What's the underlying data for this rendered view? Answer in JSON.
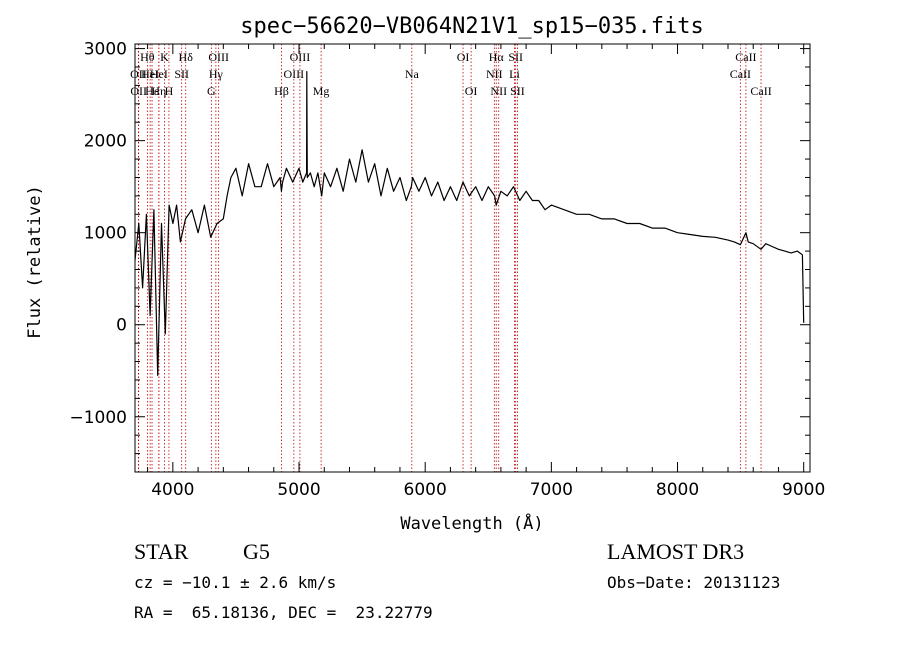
{
  "chart_data": {
    "type": "line",
    "title": "spec−56620−VB064N21V1_sp15−035.fits",
    "xlabel": "Wavelength (Å)",
    "ylabel": "Flux (relative)",
    "xlim": [
      3700,
      9050
    ],
    "ylim": [
      -1600,
      3050
    ],
    "xticks": [
      4000,
      5000,
      6000,
      7000,
      8000,
      9000
    ],
    "yticks": [
      -1000,
      0,
      1000,
      2000,
      3000
    ],
    "ytick_labels": [
      "−1000",
      "0",
      "1000",
      "2000",
      "3000"
    ],
    "series": [
      {
        "name": "spectrum",
        "x": [
          3700,
          3730,
          3760,
          3790,
          3820,
          3850,
          3880,
          3910,
          3940,
          3970,
          4000,
          4030,
          4060,
          4100,
          4150,
          4200,
          4250,
          4300,
          4350,
          4400,
          4430,
          4460,
          4500,
          4550,
          4600,
          4650,
          4700,
          4750,
          4800,
          4850,
          4860,
          4870,
          4900,
          4950,
          5000,
          5030,
          5060,
          5062,
          5064,
          5066,
          5090,
          5120,
          5150,
          5180,
          5200,
          5250,
          5300,
          5350,
          5400,
          5450,
          5500,
          5550,
          5600,
          5650,
          5700,
          5750,
          5800,
          5850,
          5890,
          5900,
          5950,
          6000,
          6050,
          6100,
          6150,
          6200,
          6250,
          6300,
          6350,
          6400,
          6450,
          6500,
          6550,
          6563,
          6600,
          6650,
          6700,
          6750,
          6800,
          6850,
          6900,
          6950,
          7000,
          7100,
          7200,
          7300,
          7400,
          7500,
          7600,
          7700,
          7800,
          7900,
          8000,
          8100,
          8200,
          8300,
          8400,
          8450,
          8498,
          8542,
          8560,
          8600,
          8662,
          8700,
          8750,
          8800,
          8850,
          8900,
          8950,
          8990,
          9000
        ],
        "y": [
          700,
          1100,
          400,
          1200,
          100,
          1250,
          -550,
          1100,
          -100,
          1300,
          1100,
          1300,
          900,
          1150,
          1250,
          1000,
          1300,
          950,
          1100,
          1150,
          1400,
          1600,
          1700,
          1400,
          1750,
          1500,
          1500,
          1750,
          1500,
          1600,
          1450,
          1550,
          1700,
          1550,
          1700,
          1550,
          1650,
          2750,
          2000,
          1600,
          1650,
          1500,
          1650,
          1400,
          1650,
          1500,
          1700,
          1450,
          1800,
          1550,
          1900,
          1550,
          1750,
          1400,
          1700,
          1450,
          1600,
          1350,
          1500,
          1600,
          1450,
          1600,
          1400,
          1550,
          1350,
          1500,
          1350,
          1550,
          1400,
          1500,
          1350,
          1500,
          1400,
          1300,
          1450,
          1400,
          1500,
          1350,
          1450,
          1350,
          1350,
          1250,
          1300,
          1250,
          1200,
          1200,
          1150,
          1150,
          1100,
          1100,
          1050,
          1050,
          1000,
          980,
          960,
          950,
          920,
          900,
          870,
          1000,
          900,
          880,
          820,
          880,
          850,
          820,
          800,
          780,
          800,
          760,
          20
        ]
      }
    ],
    "lines": [
      {
        "name": "OII",
        "x": 3727,
        "row": 1
      },
      {
        "name": "OII",
        "x": 3729,
        "row": 2
      },
      {
        "name": "Hθ",
        "x": 3798,
        "row": 0
      },
      {
        "name": "HeI",
        "x": 3820,
        "row": 1
      },
      {
        "name": "Hε",
        "x": 3835,
        "row": 2
      },
      {
        "name": "K",
        "x": 3934,
        "row": 0
      },
      {
        "name": "HeI",
        "x": 3889,
        "row": 1
      },
      {
        "name": "Hη",
        "x": 3889,
        "row": 2
      },
      {
        "name": "H",
        "x": 3969,
        "row": 2
      },
      {
        "name": "SII",
        "x": 4070,
        "row": 1
      },
      {
        "name": "Hδ",
        "x": 4102,
        "row": 0
      },
      {
        "name": "OIII",
        "x": 4363,
        "row": 0
      },
      {
        "name": "Hγ",
        "x": 4341,
        "row": 1
      },
      {
        "name": "G",
        "x": 4305,
        "row": 2
      },
      {
        "name": "Hβ",
        "x": 4861,
        "row": 2
      },
      {
        "name": "OIII",
        "x": 5007,
        "row": 0
      },
      {
        "name": "OIII",
        "x": 4959,
        "row": 1
      },
      {
        "name": "Mg",
        "x": 5175,
        "row": 2
      },
      {
        "name": "Na",
        "x": 5894,
        "row": 1
      },
      {
        "name": "OI",
        "x": 6300,
        "row": 0
      },
      {
        "name": "OI",
        "x": 6364,
        "row": 2
      },
      {
        "name": "Hα",
        "x": 6563,
        "row": 0
      },
      {
        "name": "NII",
        "x": 6548,
        "row": 1
      },
      {
        "name": "NII",
        "x": 6583,
        "row": 2
      },
      {
        "name": "SII",
        "x": 6717,
        "row": 0
      },
      {
        "name": "Li",
        "x": 6708,
        "row": 1
      },
      {
        "name": "SII",
        "x": 6731,
        "row": 2
      },
      {
        "name": "CaII",
        "x": 8542,
        "row": 0
      },
      {
        "name": "CaII",
        "x": 8498,
        "row": 1
      },
      {
        "name": "CaII",
        "x": 8662,
        "row": 2
      }
    ]
  },
  "info": {
    "class_label": "STAR",
    "subclass": "G5",
    "redshift": "cz = −10.1 ± 2.6 km/s",
    "coords": "RA =  65.18136, DEC =  23.22779",
    "survey": "LAMOST DR3",
    "obs_date": "Obs−Date: 20131123"
  },
  "colors": {
    "spectrum": "#000000",
    "line_marker": "#c00000"
  }
}
